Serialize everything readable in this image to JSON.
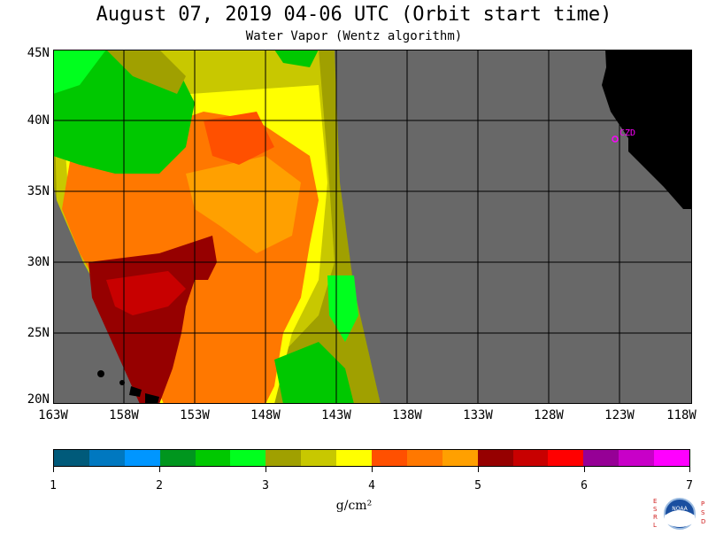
{
  "header": {
    "title": "August 07, 2019  04-06 UTC  (Orbit start time)",
    "subtitle": "Water Vapor (Wentz algorithm)"
  },
  "map": {
    "lat_labels": [
      "45N",
      "40N",
      "35N",
      "30N",
      "25N",
      "20N"
    ],
    "lon_labels": [
      "163W",
      "158W",
      "153W",
      "148W",
      "143W",
      "138W",
      "133W",
      "128W",
      "123W",
      "118W"
    ],
    "station_label": "CZD",
    "colors": {
      "no_data": "#686868",
      "land": "#000000",
      "station": "#ff00ff"
    }
  },
  "colorbar": {
    "ticks": [
      "1",
      "2",
      "3",
      "4",
      "5",
      "6",
      "7"
    ],
    "unit": "g/cm²",
    "colors": [
      "#005a7a",
      "#0078c0",
      "#0096ff",
      "#00961e",
      "#00c800",
      "#00ff1e",
      "#a0a000",
      "#c8c800",
      "#ffff00",
      "#ff5000",
      "#ff7800",
      "#ffa000",
      "#960000",
      "#c80000",
      "#ff0000",
      "#960096",
      "#c800c8",
      "#ff00ff"
    ]
  },
  "logo": {
    "left_letters": "ESRL",
    "right_letters": "PSD",
    "center_text": "NOAA"
  }
}
